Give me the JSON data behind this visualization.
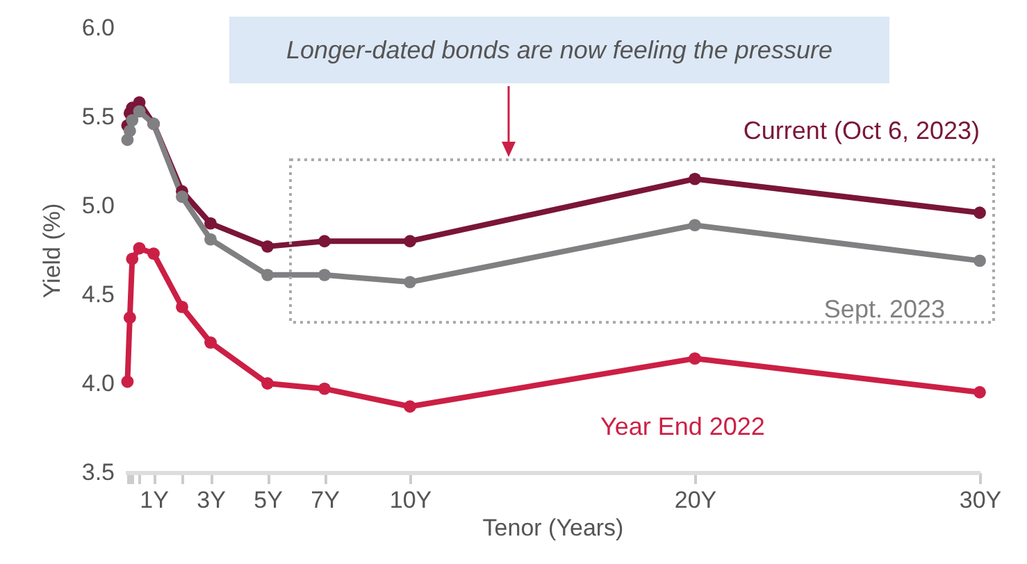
{
  "chart_data": {
    "type": "line",
    "xlabel": "Tenor (Years)",
    "ylabel": "Yield (%)",
    "annotations": [
      "Longer-dated bonds are now feeling the pressure"
    ],
    "x": [
      0.0833,
      0.1667,
      0.25,
      0.5,
      1,
      2,
      3,
      5,
      7,
      10,
      20,
      30
    ],
    "series": [
      {
        "name": "Current (Oct 6, 2023)",
        "color": "#7a1538",
        "values": [
          5.45,
          5.52,
          5.55,
          5.58,
          5.46,
          5.08,
          4.9,
          4.77,
          4.8,
          4.8,
          5.15,
          4.96
        ]
      },
      {
        "name": "Sept. 2023",
        "color": "#808083",
        "values": [
          5.37,
          5.42,
          5.48,
          5.53,
          5.46,
          5.05,
          4.81,
          4.61,
          4.61,
          4.57,
          4.89,
          4.69
        ]
      },
      {
        "name": "Year End 2022",
        "color": "#cc1f45",
        "values": [
          4.01,
          4.37,
          4.7,
          4.76,
          4.73,
          4.43,
          4.23,
          4.0,
          3.97,
          3.87,
          4.14,
          3.95
        ]
      }
    ],
    "xlim": [
      0,
      30
    ],
    "xticks": [
      {
        "value": 0.0833,
        "label": null
      },
      {
        "value": 0.1667,
        "label": null
      },
      {
        "value": 0.25,
        "label": null
      },
      {
        "value": 0.5,
        "label": null
      },
      {
        "value": 1,
        "label": "1Y"
      },
      {
        "value": 2,
        "label": null
      },
      {
        "value": 3,
        "label": "3Y"
      },
      {
        "value": 5,
        "label": "5Y"
      },
      {
        "value": 7,
        "label": "7Y"
      },
      {
        "value": 10,
        "label": "10Y"
      },
      {
        "value": 20,
        "label": "20Y"
      },
      {
        "value": 30,
        "label": "30Y"
      }
    ],
    "ylim": [
      3.5,
      6.0
    ],
    "yticks": [
      {
        "value": 3.5,
        "label": "3.5"
      },
      {
        "value": 4,
        "label": "4.0"
      },
      {
        "value": 4.5,
        "label": "4.5"
      },
      {
        "value": 5,
        "label": "5.0"
      },
      {
        "value": 5.5,
        "label": "5.5"
      },
      {
        "value": 6,
        "label": "6.0"
      }
    ],
    "grid": false,
    "legend": false,
    "marker": "circle",
    "line_style": "solid"
  }
}
